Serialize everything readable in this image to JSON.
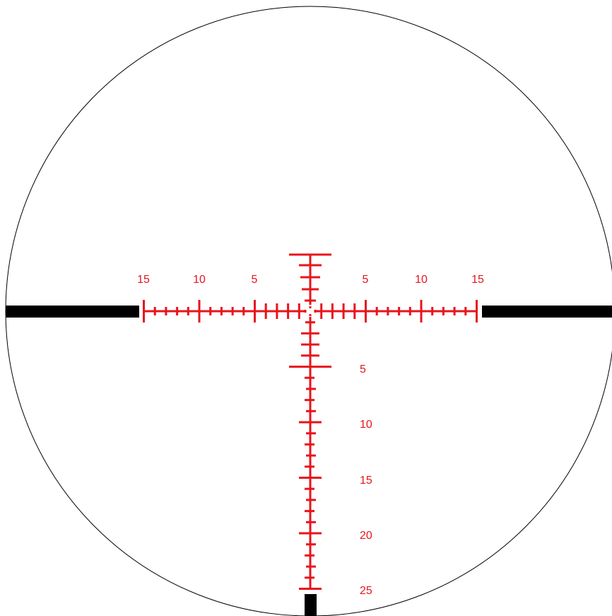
{
  "colors": {
    "reticle": "#e8141c",
    "post": "#000000",
    "outline": "#000000",
    "background": "#ffffff"
  },
  "horizontal_labels": {
    "left": [
      "15",
      "10",
      "5"
    ],
    "right": [
      "5",
      "10",
      "15"
    ]
  },
  "vertical_labels": [
    "5",
    "10",
    "15",
    "20",
    "25"
  ]
}
